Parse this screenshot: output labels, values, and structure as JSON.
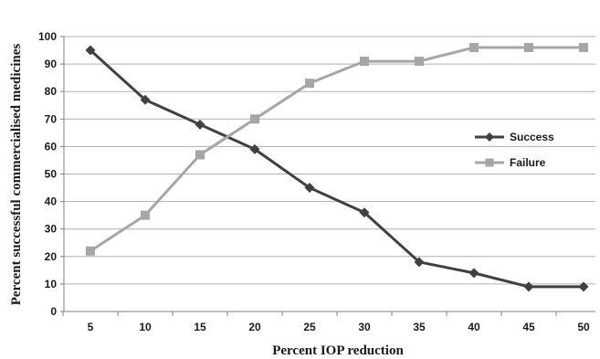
{
  "chart_data": {
    "type": "line",
    "xlabel": "Percent IOP reduction",
    "ylabel": "Percent successful commercialised medicines",
    "x": [
      5,
      10,
      15,
      20,
      25,
      30,
      35,
      40,
      45,
      50
    ],
    "ylim": [
      0,
      100
    ],
    "yticks": [
      0,
      10,
      20,
      30,
      40,
      50,
      60,
      70,
      80,
      90,
      100
    ],
    "grid": "horizontal",
    "legend_position": "right",
    "series": [
      {
        "name": "Success",
        "values": [
          95,
          77,
          68,
          59,
          45,
          36,
          18,
          14,
          9,
          9
        ],
        "color": "#404040",
        "marker": "diamond"
      },
      {
        "name": "Failure",
        "values": [
          22,
          35,
          57,
          70,
          83,
          91,
          91,
          96,
          96,
          96
        ],
        "color": "#a6a6a6",
        "marker": "square"
      }
    ]
  }
}
